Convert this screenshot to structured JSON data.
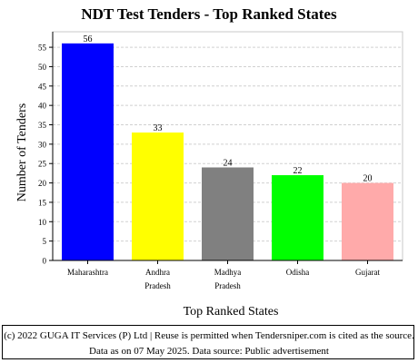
{
  "chart_data": {
    "type": "bar",
    "title": "NDT Test Tenders - Top Ranked States",
    "xlabel": "Top Ranked States",
    "ylabel": "Number of Tenders",
    "categories": [
      [
        "Maharashtra"
      ],
      [
        "Andhra",
        "Pradesh"
      ],
      [
        "Madhya",
        "Pradesh"
      ],
      [
        "Odisha"
      ],
      [
        "Gujarat"
      ]
    ],
    "values": [
      56,
      33,
      24,
      22,
      20
    ],
    "colors": [
      "#0000ff",
      "#ffff00",
      "#808080",
      "#00ff00",
      "#ffaaaa"
    ],
    "ylim": [
      0,
      59
    ],
    "yticks": [
      0,
      5,
      10,
      15,
      20,
      25,
      30,
      35,
      40,
      45,
      50,
      55
    ],
    "grid": true
  },
  "footer": {
    "text": "(c) 2022 GUGA IT Services (P) Ltd | Reuse is permitted when Tendersniper.com is cited as the source. Data as on 07 May 2025. Data source: Public advertisement"
  }
}
